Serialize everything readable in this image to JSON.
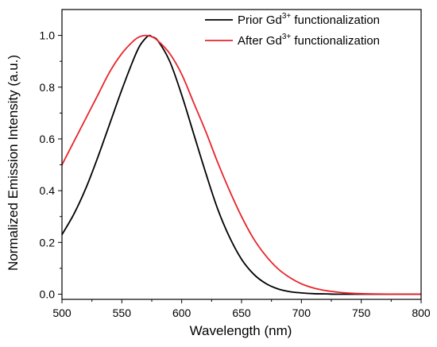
{
  "chart_data": {
    "type": "line",
    "xlabel": "Wavelength (nm)",
    "ylabel": "Normalized Emission Intensity (a.u.)",
    "xlim": [
      500,
      800
    ],
    "ylim": [
      -0.02,
      1.1
    ],
    "xticks": [
      500,
      550,
      600,
      650,
      700,
      750,
      800
    ],
    "xtick_labels": [
      "500",
      "550",
      "600",
      "650",
      "700",
      "750",
      "800"
    ],
    "yticks": [
      0.0,
      0.2,
      0.4,
      0.6,
      0.8,
      1.0
    ],
    "ytick_labels": [
      "0.0",
      "0.2",
      "0.4",
      "0.6",
      "0.8",
      "1.0"
    ],
    "legend_position": "top-right",
    "grid": false,
    "series": [
      {
        "name_main": "Prior Gd",
        "name_sup": "3+",
        "name_rest": " functionalization",
        "color": "#000000",
        "x": [
          500,
          510,
          520,
          530,
          540,
          550,
          560,
          565,
          570,
          573,
          575,
          580,
          590,
          600,
          610,
          620,
          630,
          640,
          650,
          660,
          670,
          680,
          690,
          700,
          710,
          720,
          730,
          740,
          750,
          760,
          780,
          800
        ],
        "y": [
          0.23,
          0.31,
          0.41,
          0.53,
          0.66,
          0.79,
          0.91,
          0.96,
          0.99,
          1.0,
          0.995,
          0.98,
          0.9,
          0.77,
          0.62,
          0.47,
          0.33,
          0.22,
          0.135,
          0.078,
          0.042,
          0.021,
          0.01,
          0.005,
          0.002,
          0.001,
          0.0,
          0.0,
          0.0,
          0.0,
          0.0,
          0.0
        ]
      },
      {
        "name_main": "After Gd",
        "name_sup": "3+",
        "name_rest": " functionalization",
        "color": "#e8242c",
        "x": [
          500,
          510,
          520,
          530,
          540,
          550,
          560,
          565,
          570,
          575,
          580,
          590,
          600,
          610,
          620,
          630,
          640,
          650,
          660,
          670,
          680,
          690,
          700,
          710,
          720,
          730,
          740,
          750,
          760,
          780,
          800
        ],
        "y": [
          0.5,
          0.59,
          0.68,
          0.77,
          0.86,
          0.93,
          0.98,
          0.995,
          1.0,
          0.995,
          0.98,
          0.93,
          0.85,
          0.74,
          0.63,
          0.51,
          0.4,
          0.3,
          0.215,
          0.15,
          0.1,
          0.065,
          0.04,
          0.024,
          0.014,
          0.008,
          0.004,
          0.002,
          0.001,
          0.0,
          0.0
        ]
      }
    ]
  }
}
